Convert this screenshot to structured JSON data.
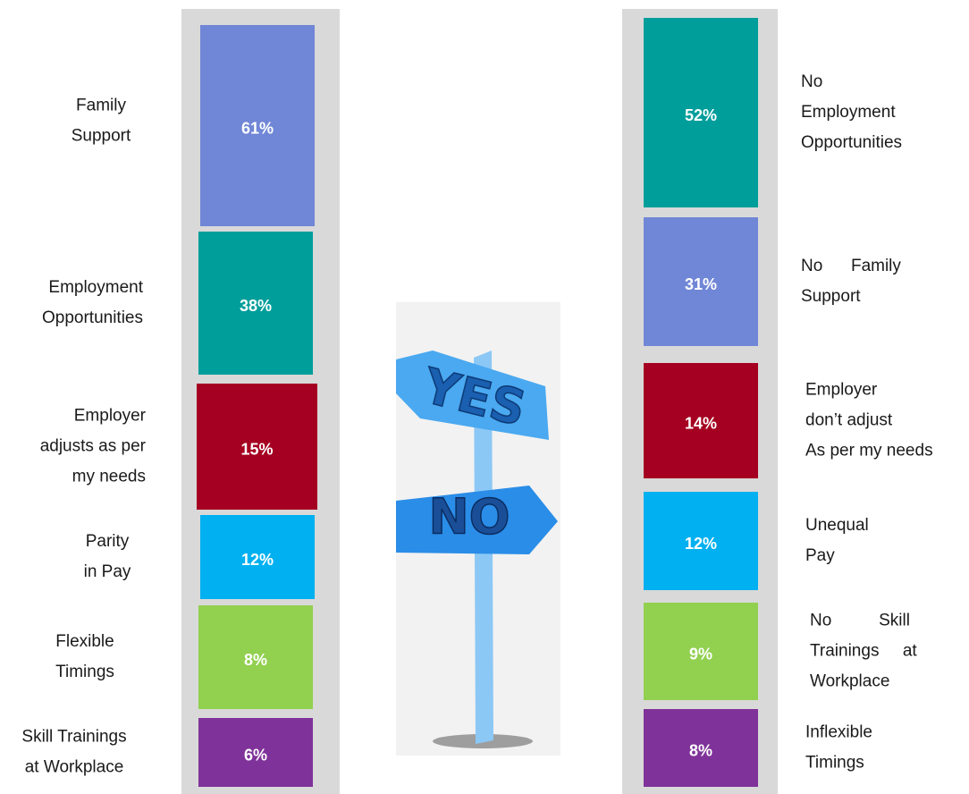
{
  "left": [
    {
      "label": [
        "Family",
        "Support"
      ],
      "value": "61%"
    },
    {
      "label": [
        "Employment",
        "Opportunities"
      ],
      "value": "38%"
    },
    {
      "label": [
        "Employer",
        "adjusts as per",
        "my needs"
      ],
      "value": "15%"
    },
    {
      "label": [
        "Parity",
        "in Pay"
      ],
      "value": "12%"
    },
    {
      "label": [
        "Flexible",
        "Timings"
      ],
      "value": "8%"
    },
    {
      "label": [
        "Skill Trainings",
        "at Workplace"
      ],
      "value": "6%"
    }
  ],
  "right": [
    {
      "label": [
        "No",
        "Employment",
        "Opportunities"
      ],
      "value": "52%"
    },
    {
      "label": [
        "No      Family",
        "Support"
      ],
      "value": "31%"
    },
    {
      "label": [
        "Employer",
        "don’t adjust",
        "As per my needs"
      ],
      "value": "14%"
    },
    {
      "label": [
        "Unequal",
        "Pay"
      ],
      "value": "12%"
    },
    {
      "label": [
        "No          Skill",
        "Trainings     at",
        "Workplace"
      ],
      "value": "9%"
    },
    {
      "label": [
        "Inflexible",
        "Timings"
      ],
      "value": "8%"
    }
  ],
  "signpost": {
    "yes": "YES",
    "no": "NO"
  }
}
